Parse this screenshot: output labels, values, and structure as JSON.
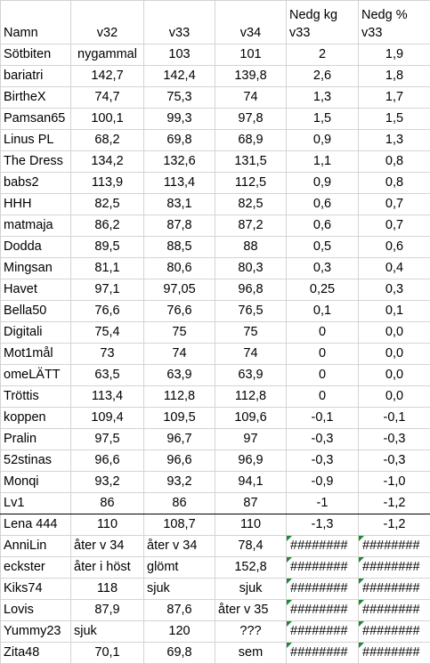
{
  "header": [
    "Namn",
    "v32",
    "v33",
    "v34",
    "Nedg kg\nv33",
    "Nedg %\nv33"
  ],
  "rows": [
    {
      "name": "Sötbiten",
      "v32": "nygammal",
      "v33": "103",
      "v34": "101",
      "kg": "2",
      "pct": "1,9"
    },
    {
      "name": "bariatri",
      "v32": "142,7",
      "v33": "142,4",
      "v34": "139,8",
      "kg": "2,6",
      "pct": "1,8"
    },
    {
      "name": "BirtheX",
      "v32": "74,7",
      "v33": "75,3",
      "v34": "74",
      "kg": "1,3",
      "pct": "1,7"
    },
    {
      "name": "Pamsan65",
      "v32": "100,1",
      "v33": "99,3",
      "v34": "97,8",
      "kg": "1,5",
      "pct": "1,5"
    },
    {
      "name": "Linus PL",
      "v32": "68,2",
      "v33": "69,8",
      "v34": "68,9",
      "kg": "0,9",
      "pct": "1,3"
    },
    {
      "name": "The Dress",
      "v32": "134,2",
      "v33": "132,6",
      "v34": "131,5",
      "kg": "1,1",
      "pct": "0,8"
    },
    {
      "name": "babs2",
      "v32": "113,9",
      "v33": "113,4",
      "v34": "112,5",
      "kg": "0,9",
      "pct": "0,8"
    },
    {
      "name": "HHH",
      "v32": "82,5",
      "v33": "83,1",
      "v34": "82,5",
      "kg": "0,6",
      "pct": "0,7"
    },
    {
      "name": "matmaja",
      "v32": "86,2",
      "v33": "87,8",
      "v34": "87,2",
      "kg": "0,6",
      "pct": "0,7"
    },
    {
      "name": "Dodda",
      "v32": "89,5",
      "v33": "88,5",
      "v34": "88",
      "kg": "0,5",
      "pct": "0,6"
    },
    {
      "name": "Mingsan",
      "v32": "81,1",
      "v33": "80,6",
      "v34": "80,3",
      "kg": "0,3",
      "pct": "0,4"
    },
    {
      "name": "Havet",
      "v32": "97,1",
      "v33": "97,05",
      "v34": "96,8",
      "kg": "0,25",
      "pct": "0,3"
    },
    {
      "name": "Bella50",
      "v32": "76,6",
      "v33": "76,6",
      "v34": "76,5",
      "kg": "0,1",
      "pct": "0,1"
    },
    {
      "name": "Digitali",
      "v32": "75,4",
      "v33": "75",
      "v34": "75",
      "kg": "0",
      "pct": "0,0"
    },
    {
      "name": "Mot1mål",
      "v32": "73",
      "v33": "74",
      "v34": "74",
      "kg": "0",
      "pct": "0,0"
    },
    {
      "name": "omeLÄTT",
      "v32": "63,5",
      "v33": "63,9",
      "v34": "63,9",
      "kg": "0",
      "pct": "0,0"
    },
    {
      "name": "Tröttis",
      "v32": "113,4",
      "v33": "112,8",
      "v34": "112,8",
      "kg": "0",
      "pct": "0,0"
    },
    {
      "name": "koppen",
      "v32": "109,4",
      "v33": "109,5",
      "v34": "109,6",
      "kg": "-0,1",
      "pct": "-0,1"
    },
    {
      "name": "Pralin",
      "v32": "97,5",
      "v33": "96,7",
      "v34": "97",
      "kg": "-0,3",
      "pct": "-0,3"
    },
    {
      "name": "52stinas",
      "v32": "96,6",
      "v33": "96,6",
      "v34": "96,9",
      "kg": "-0,3",
      "pct": "-0,3"
    },
    {
      "name": "Monqi",
      "v32": "93,2",
      "v33": "93,2",
      "v34": "94,1",
      "kg": "-0,9",
      "pct": "-1,0"
    },
    {
      "name": "Lv1",
      "v32": "86",
      "v33": "86",
      "v34": "87",
      "kg": "-1",
      "pct": "-1,2"
    },
    {
      "name": "Lena 444",
      "v32": "110",
      "v33": "108,7",
      "v34": "110",
      "kg": "-1,3",
      "pct": "-1,2"
    },
    {
      "name": "AnniLin",
      "v32": "åter v 34",
      "v33": "åter v 34",
      "v34": "78,4",
      "kg": "########",
      "pct": "########"
    },
    {
      "name": "eckster",
      "v32": "åter i höst",
      "v33": "glömt",
      "v34": "152,8",
      "kg": "########",
      "pct": "########"
    },
    {
      "name": "Kiks74",
      "v32": "118",
      "v33": "sjuk",
      "v34": "sjuk",
      "kg": "########",
      "pct": "########"
    },
    {
      "name": "Lovis",
      "v32": "87,9",
      "v33": "87,6",
      "v34": "åter v 35",
      "kg": "########",
      "pct": "########"
    },
    {
      "name": "Yummy23",
      "v32": "sjuk",
      "v33": "120",
      "v34": "???",
      "kg": "########",
      "pct": "########"
    },
    {
      "name": "Zita48",
      "v32": "70,1",
      "v33": "69,8",
      "v34": "sem",
      "kg": "########",
      "pct": "########"
    }
  ]
}
